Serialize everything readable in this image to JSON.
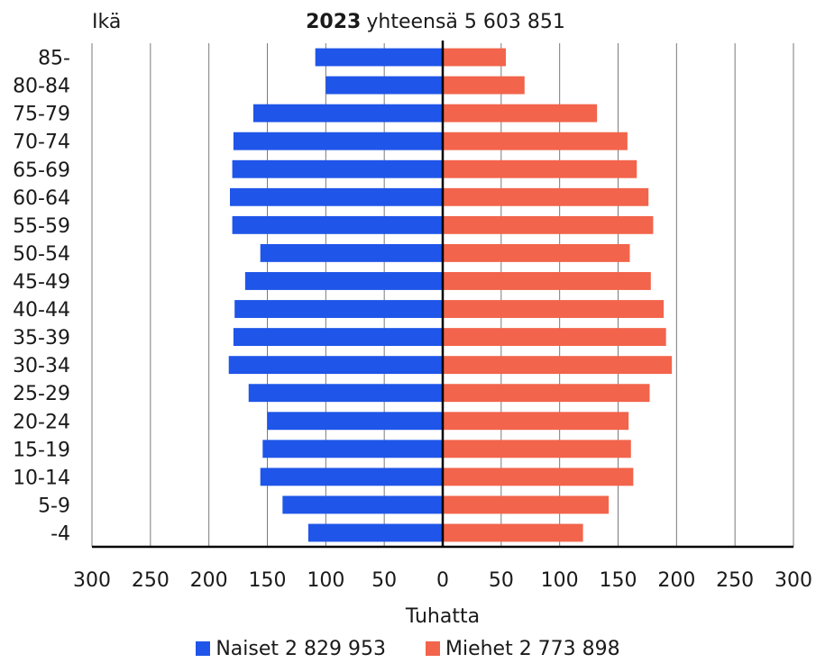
{
  "chart_data": {
    "type": "bar",
    "orientation": "horizontal",
    "layout": "population-pyramid",
    "title_year": "2023",
    "title_rest": "yhteensä 5 603 851",
    "y_axis_title": "Ikä",
    "xlabel": "Tuhatta",
    "xlim": [
      -300,
      300
    ],
    "x_ticks": [
      -300,
      -250,
      -200,
      -150,
      -100,
      -50,
      0,
      50,
      100,
      150,
      200,
      250,
      300
    ],
    "x_tick_labels": [
      "300",
      "250",
      "200",
      "150",
      "100",
      "50",
      "0",
      "50",
      "100",
      "150",
      "200",
      "250",
      "300"
    ],
    "categories": [
      "85-",
      "80-84",
      "75-79",
      "70-74",
      "65-69",
      "60-64",
      "55-59",
      "50-54",
      "45-49",
      "40-44",
      "35-39",
      "30-34",
      "25-29",
      "20-24",
      "15-19",
      "10-14",
      "5-9",
      "-4"
    ],
    "grid": true,
    "series": [
      {
        "name": "Naiset 2 829 953",
        "side": "left",
        "color": "#1f55e8",
        "values": [
          109,
          100,
          162,
          179,
          180,
          182,
          180,
          156,
          169,
          178,
          179,
          183,
          166,
          150,
          154,
          156,
          137,
          115
        ]
      },
      {
        "name": "Miehet 2 773 898",
        "side": "right",
        "color": "#f2644b",
        "values": [
          54,
          70,
          132,
          158,
          166,
          176,
          180,
          160,
          178,
          189,
          191,
          196,
          177,
          159,
          161,
          163,
          142,
          120
        ]
      }
    ]
  }
}
